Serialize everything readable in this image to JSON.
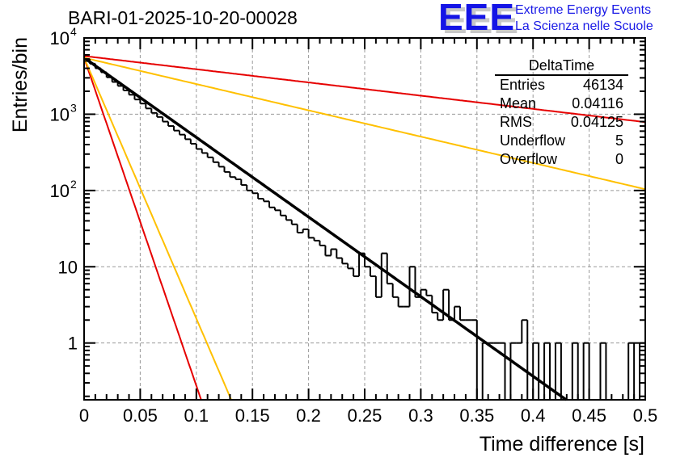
{
  "header": {
    "run_title": "BARI-01-2025-10-20-00028",
    "logo": {
      "mark": "EEE",
      "line1": "Extreme Energy Events",
      "line2": "La Scienza nelle Scuole"
    }
  },
  "stats_box": {
    "title": "DeltaTime",
    "rows": [
      {
        "label": "Entries",
        "value": "46134"
      },
      {
        "label": "Mean",
        "value": "0.04116"
      },
      {
        "label": "RMS",
        "value": "0.04125"
      },
      {
        "label": "Underflow",
        "value": "5"
      },
      {
        "label": "Overflow",
        "value": "0"
      }
    ]
  },
  "chart_data": {
    "type": "histogram",
    "title": "BARI-01-2025-10-20-00028",
    "xlabel": "Time difference [s]",
    "ylabel": "Entries/bin",
    "xlim": [
      0,
      0.5
    ],
    "ylim": [
      0.18,
      10000
    ],
    "yscale": "log",
    "grid": true,
    "x_ticks": [
      "0",
      "0.05",
      "0.1",
      "0.15",
      "0.2",
      "0.25",
      "0.3",
      "0.35",
      "0.4",
      "0.45",
      "0.5"
    ],
    "x_tick_values": [
      0,
      0.05,
      0.1,
      0.15,
      0.2,
      0.25,
      0.3,
      0.35,
      0.4,
      0.45,
      0.5
    ],
    "y_ticks": [
      {
        "value": 10000,
        "base": "10",
        "exp": "4"
      },
      {
        "value": 1000,
        "base": "10",
        "exp": "3"
      },
      {
        "value": 100,
        "base": "10",
        "exp": "2"
      },
      {
        "value": 10,
        "base": "10",
        "exp": ""
      },
      {
        "value": 1,
        "base": "1",
        "exp": ""
      }
    ],
    "histogram": {
      "name": "DeltaTime",
      "bin_width": 0.005,
      "bin_start": 0,
      "counts": [
        5300,
        4600,
        4000,
        3550,
        3050,
        2650,
        2350,
        2050,
        1800,
        1560,
        1380,
        1190,
        1040,
        920,
        800,
        700,
        610,
        540,
        470,
        410,
        350,
        310,
        272,
        235,
        205,
        175,
        150,
        140,
        118,
        100,
        92,
        78,
        72,
        60,
        55,
        47,
        41,
        36,
        28,
        31,
        24,
        22,
        19,
        14,
        17,
        13,
        11,
        9.5,
        7.5,
        15,
        10,
        7.5,
        4,
        15,
        6,
        4,
        3,
        3,
        10,
        4,
        5,
        4.2,
        2.5,
        2,
        5,
        2,
        3,
        2,
        2,
        2,
        0,
        1,
        1,
        1,
        1,
        0,
        1,
        1,
        2,
        0,
        1,
        0,
        1,
        0,
        1,
        0,
        0,
        1,
        0,
        1,
        0,
        0,
        1,
        0,
        0,
        0,
        0,
        1,
        0,
        1
      ]
    },
    "series": [
      {
        "name": "exponential fit",
        "color": "#000000",
        "amplitude": 5500,
        "tau": 0.0416
      },
      {
        "name": "steep red limit",
        "color": "#e60000",
        "amplitude": 5500,
        "tau": 0.0101
      },
      {
        "name": "steep yellow limit",
        "color": "#ffc000",
        "amplitude": 5500,
        "tau": 0.0127
      },
      {
        "name": "shallow red limit",
        "color": "#e60000",
        "amplitude": 5800,
        "tau": 0.2505
      },
      {
        "name": "shallow yellow limit",
        "color": "#ffc000",
        "amplitude": 5500,
        "tau": 0.126
      }
    ]
  }
}
